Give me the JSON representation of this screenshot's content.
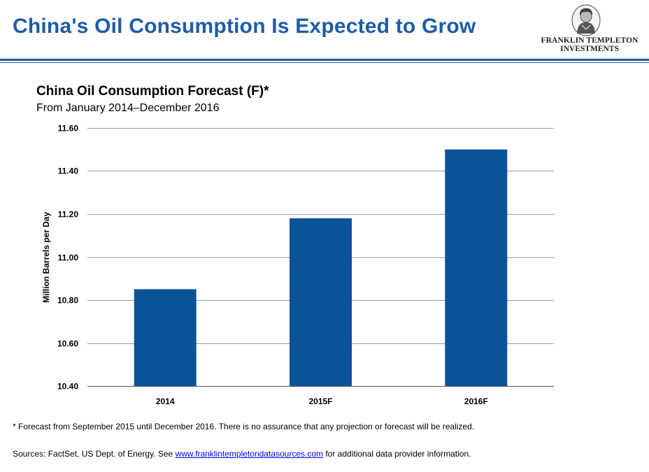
{
  "header": {
    "title": "China's Oil Consumption Is Expected to Grow",
    "logo_line1": "FRANKLIN TEMPLETON",
    "logo_line2": "INVESTMENTS"
  },
  "colors": {
    "title": "#1f5ba8",
    "bar": "#0a5398",
    "rule": "#1f5ba8",
    "grid": "#9a9a9a"
  },
  "chart_data": {
    "type": "bar",
    "title": "China Oil Consumption Forecast (F)*",
    "subtitle": "From January 2014–December 2016",
    "xlabel": "",
    "ylabel": "Million Barrels per Day",
    "categories": [
      "2014",
      "2015F",
      "2016F"
    ],
    "values": [
      10.85,
      11.18,
      11.5
    ],
    "ylim": [
      10.4,
      11.6
    ],
    "yticks": [
      10.4,
      10.6,
      10.8,
      11.0,
      11.2,
      11.4,
      11.6
    ],
    "ytick_labels": [
      "10.40",
      "10.60",
      "10.80",
      "11.00",
      "11.20",
      "11.40",
      "11.60"
    ],
    "grid": true,
    "legend": "none"
  },
  "footer": {
    "footnote": "* Forecast from September 2015 until December 2016. There is no assurance that any projection or forecast will be realized.",
    "sources_prefix": "Sources: FactSet, US Dept. of Energy. See ",
    "sources_link": "www.franklintempletondatasources.com",
    "sources_suffix": " for additional data provider information."
  }
}
